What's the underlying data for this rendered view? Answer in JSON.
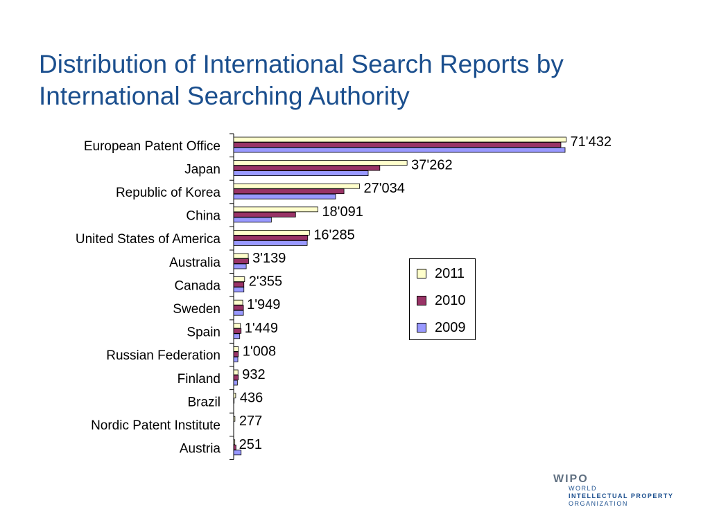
{
  "title": {
    "line1": "Distribution of International Search Reports by",
    "line2": "International Searching Authority"
  },
  "chart_data": {
    "type": "bar",
    "orientation": "horizontal",
    "categories": [
      "European Patent Office",
      "Japan",
      "Republic of Korea",
      "China",
      "United States of America",
      "Australia",
      "Canada",
      "Sweden",
      "Spain",
      "Russian Federation",
      "Finland",
      "Brazil",
      "Nordic Patent Institute",
      "Austria"
    ],
    "data_labels": [
      "71'432",
      "37'262",
      "27'034",
      "18'091",
      "16'285",
      "3'139",
      "2'355",
      "1'949",
      "1'449",
      "1'008",
      "932",
      "436",
      "277",
      "251"
    ],
    "series": [
      {
        "name": "2011",
        "color": "#ffffcc",
        "values": [
          71432,
          37262,
          27034,
          18091,
          16285,
          3139,
          2355,
          1949,
          1449,
          1008,
          932,
          436,
          277,
          251
        ]
      },
      {
        "name": "2010",
        "color": "#993366",
        "values": [
          70300,
          31400,
          23700,
          13300,
          15900,
          3200,
          2200,
          2100,
          1600,
          1000,
          1000,
          100,
          0,
          500
        ]
      },
      {
        "name": "2009",
        "color": "#9999ff",
        "values": [
          71200,
          28900,
          21900,
          8100,
          15800,
          2700,
          2200,
          2100,
          1300,
          900,
          800,
          0,
          0,
          1600
        ]
      }
    ],
    "legend_position": "right",
    "grid": false,
    "xlim": [
      0,
      71500
    ]
  },
  "logo": {
    "mark": "WIPO",
    "lines": [
      "WORLD",
      "INTELLECTUAL PROPERTY",
      "ORGANIZATION"
    ]
  }
}
